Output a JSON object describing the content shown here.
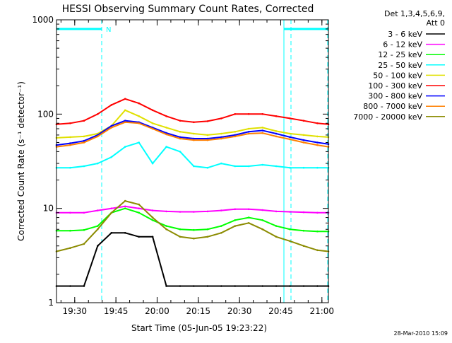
{
  "title": "HESSI Observing Summary Count Rates, Corrected",
  "header_lines": [
    "Det 1,3,4,5,6,9,",
    "Att 0"
  ],
  "timestamp": "28-Mar-2010 15:09",
  "flag_label": "N",
  "chart_data": {
    "type": "line",
    "title": "HESSI Observing Summary Count Rates, Corrected",
    "xlabel": "Start Time (05-Jun-05 19:23:22)",
    "ylabel": "Corrected Count Rate (s⁻¹ detector⁻¹)",
    "x_unit": "minutes after 19:23:22",
    "xlim": [
      0,
      99
    ],
    "ylim": [
      1,
      1000
    ],
    "yscale": "log",
    "x_ticks": [
      "19:30",
      "19:45",
      "20:00",
      "20:15",
      "20:30",
      "20:45",
      "21:00"
    ],
    "y_ticks": [
      "1",
      "10",
      "100",
      "1000"
    ],
    "legend_position": "right",
    "grid": false,
    "x": [
      0,
      5,
      10,
      15,
      20,
      25,
      30,
      35,
      40,
      45,
      50,
      55,
      60,
      65,
      70,
      75,
      80,
      85,
      90,
      95,
      99
    ],
    "series": [
      {
        "name": "3 - 6 keV",
        "color": "#000000",
        "values": [
          1.5,
          1.5,
          1.5,
          4,
          5.5,
          5.5,
          5,
          5,
          1.5,
          1.5,
          1.5,
          1.5,
          1.5,
          1.5,
          1.5,
          1.5,
          1.5,
          1.5,
          1.5,
          1.5,
          1.5
        ]
      },
      {
        "name": "6 - 12 keV",
        "color": "#ff00ff",
        "values": [
          9,
          9,
          9,
          9.5,
          10,
          10.5,
          10,
          9.5,
          9.3,
          9.2,
          9.2,
          9.3,
          9.5,
          9.8,
          9.8,
          9.6,
          9.3,
          9.2,
          9.1,
          9,
          9
        ]
      },
      {
        "name": "12 - 25 keV",
        "color": "#00ff00",
        "values": [
          5.8,
          5.8,
          5.9,
          6.5,
          9,
          10,
          9,
          7.5,
          6.5,
          6,
          5.9,
          6,
          6.5,
          7.5,
          8,
          7.5,
          6.5,
          6,
          5.8,
          5.7,
          5.7
        ]
      },
      {
        "name": "25 - 50 keV",
        "color": "#00ffff",
        "values": [
          27,
          27,
          28,
          30,
          35,
          45,
          50,
          30,
          45,
          40,
          28,
          27,
          30,
          28,
          28,
          29,
          28,
          27,
          27,
          27,
          27
        ]
      },
      {
        "name": "50 - 100 keV",
        "color": "#e0e000",
        "values": [
          56,
          57,
          58,
          62,
          75,
          110,
          95,
          80,
          72,
          65,
          62,
          60,
          62,
          65,
          70,
          72,
          66,
          62,
          60,
          58,
          57
        ]
      },
      {
        "name": "100 - 300 keV",
        "color": "#ff0000",
        "values": [
          78,
          80,
          85,
          100,
          125,
          145,
          130,
          110,
          95,
          85,
          82,
          84,
          90,
          100,
          100,
          100,
          95,
          90,
          85,
          80,
          78
        ]
      },
      {
        "name": "300 - 800 keV",
        "color": "#0000ff",
        "values": [
          47,
          49,
          52,
          60,
          75,
          85,
          82,
          72,
          63,
          57,
          55,
          55,
          57,
          60,
          65,
          67,
          62,
          57,
          53,
          50,
          48
        ]
      },
      {
        "name": "800 - 7000 keV",
        "color": "#ff8000",
        "values": [
          45,
          47,
          50,
          58,
          72,
          82,
          80,
          70,
          61,
          55,
          53,
          53,
          55,
          58,
          62,
          63,
          58,
          54,
          50,
          47,
          45
        ]
      },
      {
        "name": "7000 - 20000 keV",
        "color": "#8b8b00",
        "values": [
          3.5,
          3.8,
          4.2,
          6,
          9,
          12,
          11,
          8,
          6,
          5,
          4.8,
          5,
          5.5,
          6.5,
          7,
          6,
          5,
          4.5,
          4,
          3.6,
          3.5
        ]
      }
    ]
  }
}
